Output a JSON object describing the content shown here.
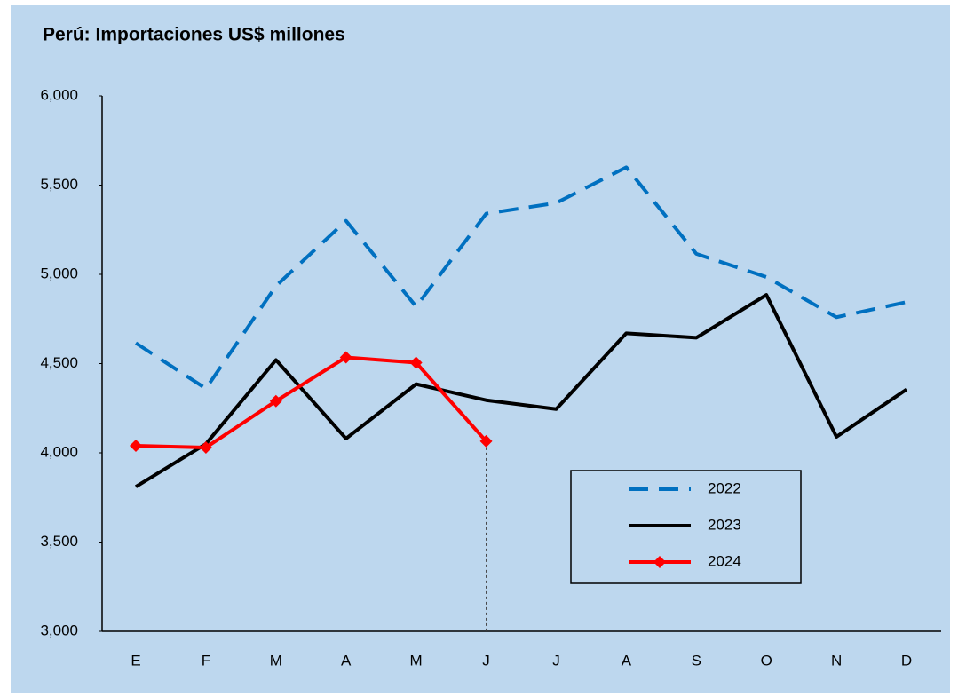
{
  "chart_data": {
    "type": "line",
    "title": "Perú: Importaciones US$ millones",
    "categories": [
      "E",
      "F",
      "M",
      "A",
      "M",
      "J",
      "J",
      "A",
      "S",
      "O",
      "N",
      "D"
    ],
    "series": [
      {
        "name": "2022",
        "color": "#0070c0",
        "dashed": true,
        "values": [
          4615,
          4360,
          4935,
          5300,
          4820,
          5340,
          5400,
          5600,
          5115,
          4985,
          4760,
          4845
        ]
      },
      {
        "name": "2023",
        "color": "#000000",
        "values": [
          3810,
          4050,
          4520,
          4080,
          4385,
          4295,
          4245,
          4670,
          4645,
          4885,
          4090,
          4355
        ]
      },
      {
        "name": "2024",
        "color": "#ff0000",
        "marker": "diamond",
        "values": [
          4040,
          4030,
          4290,
          4535,
          4505,
          4065,
          null,
          null,
          null,
          null,
          null,
          null
        ]
      }
    ],
    "ylim": [
      3000,
      6000
    ],
    "yticks": [
      {
        "value": 3000,
        "label": "3,000"
      },
      {
        "value": 3500,
        "label": "3,500"
      },
      {
        "value": 4000,
        "label": "4,000"
      },
      {
        "value": 4500,
        "label": "4,500"
      },
      {
        "value": 5000,
        "label": "5,000"
      },
      {
        "value": 5500,
        "label": "5,500"
      },
      {
        "value": 6000,
        "label": "6,000"
      }
    ]
  }
}
